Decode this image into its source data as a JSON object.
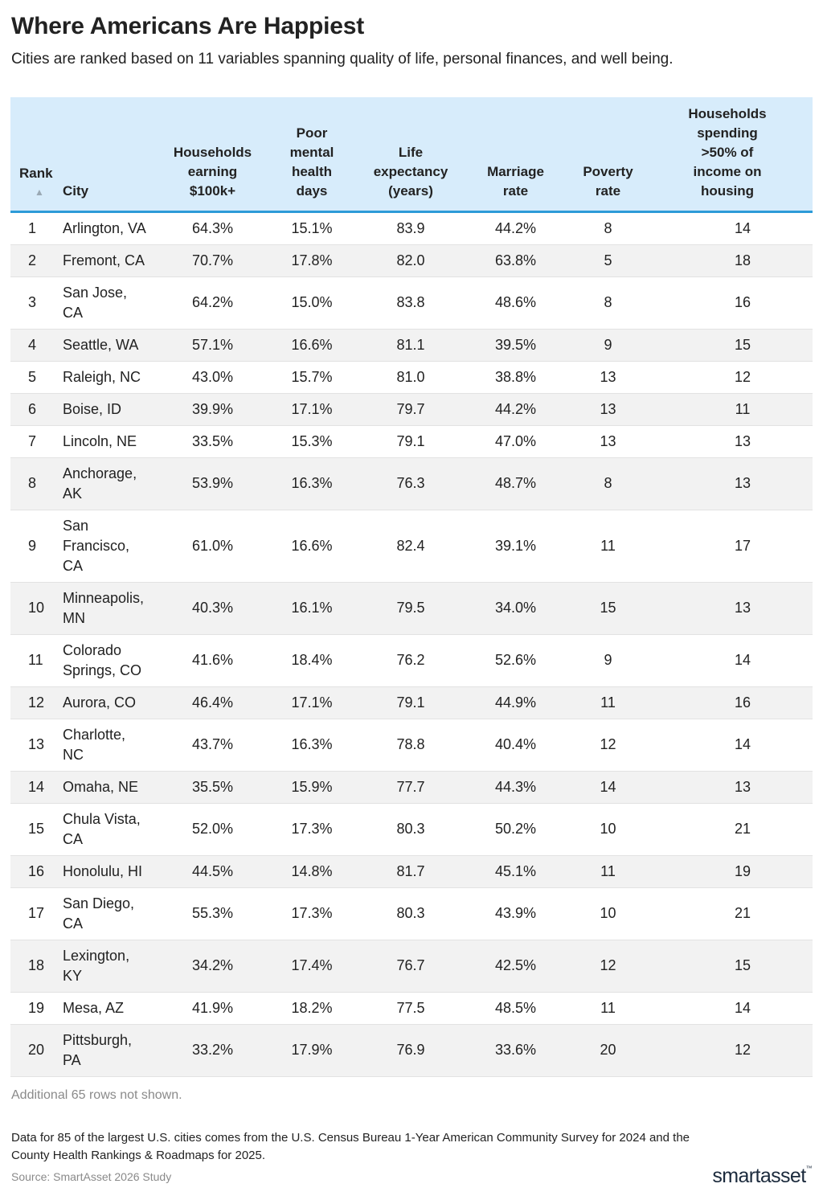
{
  "header": {
    "title": "Where Americans Are Happiest",
    "subtitle": "Cities are ranked based on 11 variables spanning quality of life, personal finances, and well being."
  },
  "table": {
    "columns": {
      "rank": "Rank",
      "city": "City",
      "income": [
        "Households",
        "earning",
        "$100k+"
      ],
      "mental": [
        "Poor",
        "mental",
        "health",
        "days"
      ],
      "life": [
        "Life",
        "expectancy",
        "(years)"
      ],
      "marriage": [
        "Marriage",
        "rate"
      ],
      "poverty": [
        "Poverty",
        "rate"
      ],
      "housing": [
        "Households",
        "spending",
        ">50% of",
        "income on",
        "housing"
      ]
    },
    "sort_icon": "sort-ascending-icon",
    "sort_glyph": "▲",
    "rows": [
      {
        "rank": "1",
        "city": "Arlington, VA",
        "income": "64.3%",
        "mental": "15.1%",
        "life": "83.9",
        "marriage": "44.2%",
        "poverty": "8",
        "housing": "14"
      },
      {
        "rank": "2",
        "city": "Fremont, CA",
        "income": "70.7%",
        "mental": "17.8%",
        "life": "82.0",
        "marriage": "63.8%",
        "poverty": "5",
        "housing": "18"
      },
      {
        "rank": "3",
        "city": "San Jose, CA",
        "income": "64.2%",
        "mental": "15.0%",
        "life": "83.8",
        "marriage": "48.6%",
        "poverty": "8",
        "housing": "16"
      },
      {
        "rank": "4",
        "city": "Seattle, WA",
        "income": "57.1%",
        "mental": "16.6%",
        "life": "81.1",
        "marriage": "39.5%",
        "poverty": "9",
        "housing": "15"
      },
      {
        "rank": "5",
        "city": "Raleigh, NC",
        "income": "43.0%",
        "mental": "15.7%",
        "life": "81.0",
        "marriage": "38.8%",
        "poverty": "13",
        "housing": "12"
      },
      {
        "rank": "6",
        "city": "Boise, ID",
        "income": "39.9%",
        "mental": "17.1%",
        "life": "79.7",
        "marriage": "44.2%",
        "poverty": "13",
        "housing": "11"
      },
      {
        "rank": "7",
        "city": "Lincoln, NE",
        "income": "33.5%",
        "mental": "15.3%",
        "life": "79.1",
        "marriage": "47.0%",
        "poverty": "13",
        "housing": "13"
      },
      {
        "rank": "8",
        "city": "Anchorage, AK",
        "income": "53.9%",
        "mental": "16.3%",
        "life": "76.3",
        "marriage": "48.7%",
        "poverty": "8",
        "housing": "13"
      },
      {
        "rank": "9",
        "city": "San Francisco, CA",
        "income": "61.0%",
        "mental": "16.6%",
        "life": "82.4",
        "marriage": "39.1%",
        "poverty": "11",
        "housing": "17"
      },
      {
        "rank": "10",
        "city": "Minneapolis, MN",
        "income": "40.3%",
        "mental": "16.1%",
        "life": "79.5",
        "marriage": "34.0%",
        "poverty": "15",
        "housing": "13"
      },
      {
        "rank": "11",
        "city": "Colorado Springs, CO",
        "income": "41.6%",
        "mental": "18.4%",
        "life": "76.2",
        "marriage": "52.6%",
        "poverty": "9",
        "housing": "14"
      },
      {
        "rank": "12",
        "city": "Aurora, CO",
        "income": "46.4%",
        "mental": "17.1%",
        "life": "79.1",
        "marriage": "44.9%",
        "poverty": "11",
        "housing": "16"
      },
      {
        "rank": "13",
        "city": "Charlotte, NC",
        "income": "43.7%",
        "mental": "16.3%",
        "life": "78.8",
        "marriage": "40.4%",
        "poverty": "12",
        "housing": "14"
      },
      {
        "rank": "14",
        "city": "Omaha, NE",
        "income": "35.5%",
        "mental": "15.9%",
        "life": "77.7",
        "marriage": "44.3%",
        "poverty": "14",
        "housing": "13"
      },
      {
        "rank": "15",
        "city": "Chula Vista, CA",
        "income": "52.0%",
        "mental": "17.3%",
        "life": "80.3",
        "marriage": "50.2%",
        "poverty": "10",
        "housing": "21"
      },
      {
        "rank": "16",
        "city": "Honolulu, HI",
        "income": "44.5%",
        "mental": "14.8%",
        "life": "81.7",
        "marriage": "45.1%",
        "poverty": "11",
        "housing": "19"
      },
      {
        "rank": "17",
        "city": "San Diego, CA",
        "income": "55.3%",
        "mental": "17.3%",
        "life": "80.3",
        "marriage": "43.9%",
        "poverty": "10",
        "housing": "21"
      },
      {
        "rank": "18",
        "city": "Lexington, KY",
        "income": "34.2%",
        "mental": "17.4%",
        "life": "76.7",
        "marriage": "42.5%",
        "poverty": "12",
        "housing": "15"
      },
      {
        "rank": "19",
        "city": "Mesa, AZ",
        "income": "41.9%",
        "mental": "18.2%",
        "life": "77.5",
        "marriage": "48.5%",
        "poverty": "11",
        "housing": "14"
      },
      {
        "rank": "20",
        "city": "Pittsburgh, PA",
        "income": "33.2%",
        "mental": "17.9%",
        "life": "76.9",
        "marriage": "33.6%",
        "poverty": "20",
        "housing": "12"
      }
    ]
  },
  "footer": {
    "rows_note": "Additional 65 rows not shown.",
    "methodology": "Data for 85 of the largest U.S. cities comes from the U.S. Census Bureau 1-Year American Community Survey for 2024 and the County Health Rankings & Roadmaps for 2025.",
    "source": "Source: SmartAsset 2026 Study",
    "logo_text": "smartasset",
    "logo_tm": "™"
  },
  "colors": {
    "header_bg": "#d7ecfb",
    "header_rule": "#2d9bd8",
    "stripe": "#f2f2f2",
    "muted_text": "#8a8a8a"
  }
}
